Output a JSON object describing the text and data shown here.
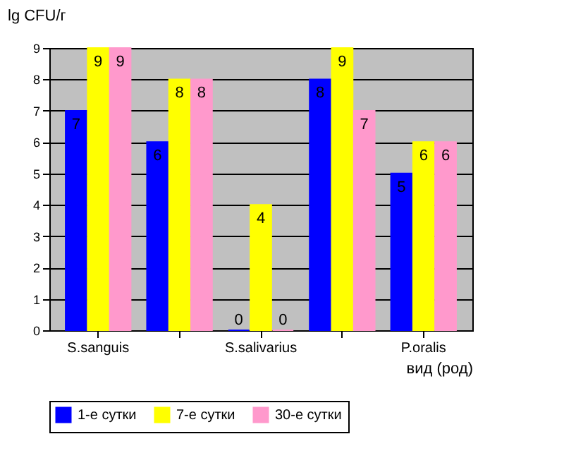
{
  "chart_data": {
    "type": "bar",
    "ylabel": "lg CFU/г",
    "xlabel": "вид (род)",
    "categories": [
      "S.sanguis",
      null,
      "S.salivarius",
      null,
      "P.oralis"
    ],
    "series": [
      {
        "name": "1-е сутки",
        "color": "#0000ff",
        "values": [
          7,
          6,
          0,
          8,
          5
        ]
      },
      {
        "name": "7-е сутки",
        "color": "#ffff00",
        "values": [
          9,
          8,
          4,
          9,
          6
        ]
      },
      {
        "name": "30-е сутки",
        "color": "#ff99cc",
        "values": [
          9,
          8,
          0,
          7,
          6
        ]
      }
    ],
    "ylim": [
      0,
      9
    ],
    "yticks": [
      0,
      1,
      2,
      3,
      4,
      5,
      6,
      7,
      8,
      9
    ],
    "grid": "y",
    "legend": "bottom",
    "data_labels": true
  }
}
